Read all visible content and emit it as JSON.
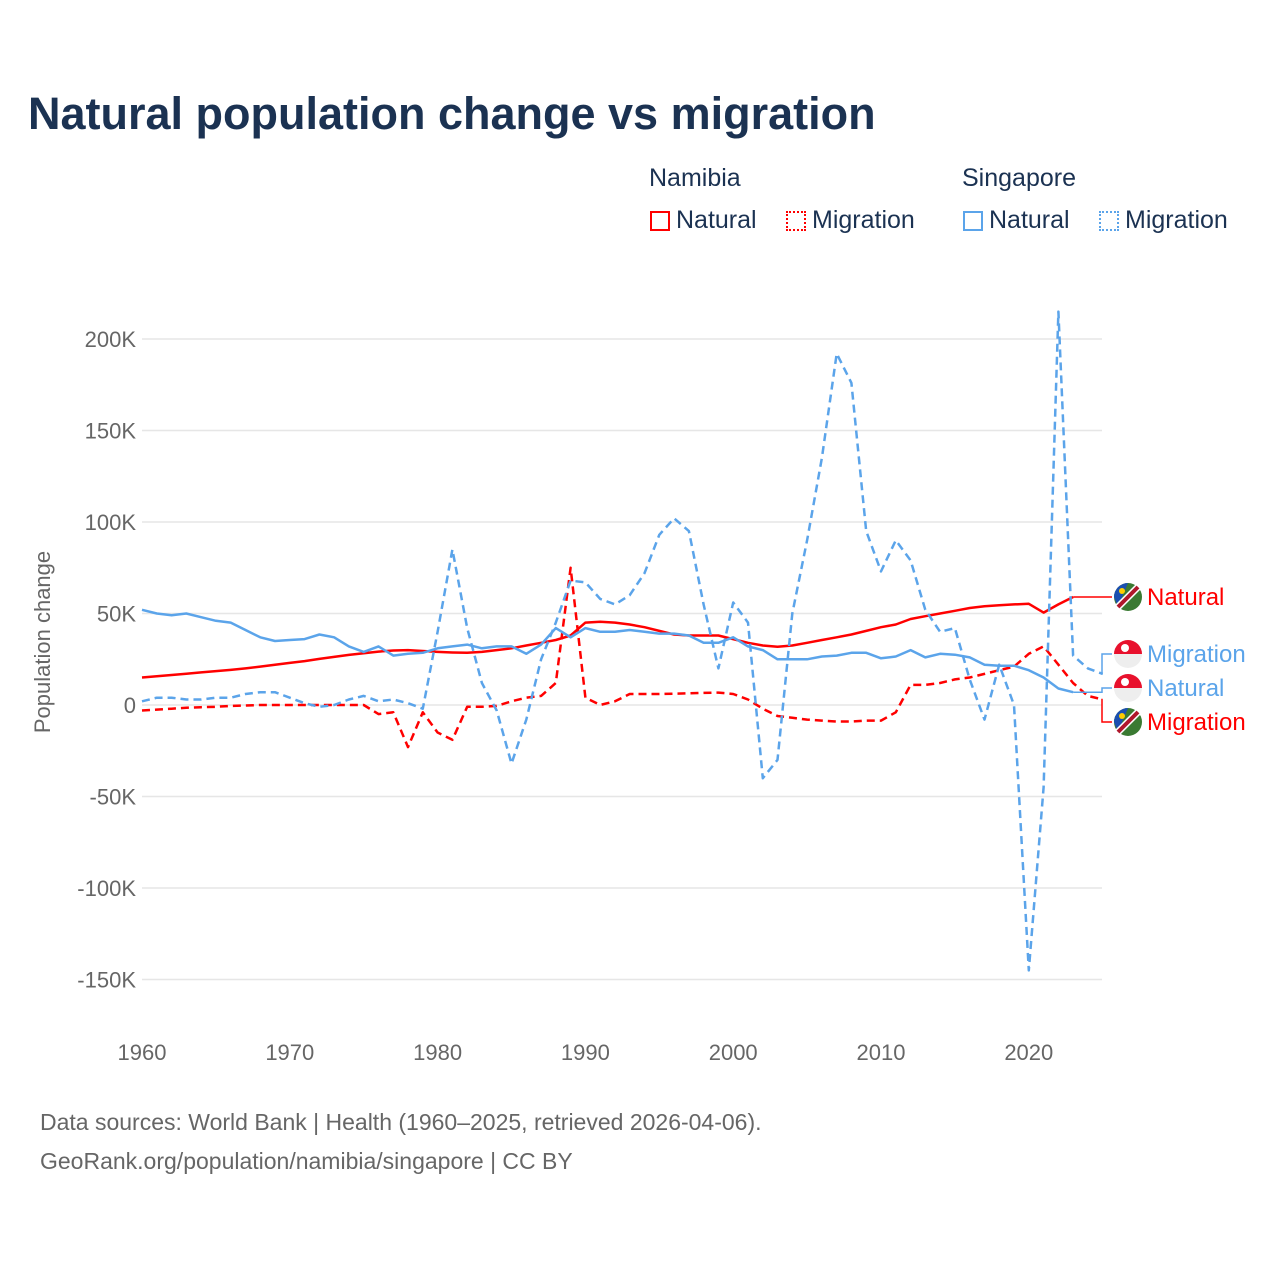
{
  "title": "Natural population change vs migration",
  "legend": {
    "groups": [
      {
        "name": "Namibia",
        "items": [
          "Natural",
          "Migration"
        ]
      },
      {
        "name": "Singapore",
        "items": [
          "Natural",
          "Migration"
        ]
      }
    ]
  },
  "colors": {
    "namibia": "#ff0000",
    "singapore": "#5ba4ea",
    "title": "#1b3252"
  },
  "source": [
    "Data sources: World Bank | Health (1960–2025, retrieved 2026-04-06).",
    "GeoRank.org/population/namibia/singapore | CC BY"
  ],
  "chart_data": {
    "type": "line",
    "title": "Natural population change vs migration",
    "ylabel": "Population change",
    "xlabel": "",
    "xlim": [
      1960,
      2025
    ],
    "ylim": [
      -165,
      215
    ],
    "unit": "thousands",
    "x_ticks": [
      "1960",
      "1970",
      "1980",
      "1990",
      "2000",
      "2010",
      "2020"
    ],
    "y_ticks": [
      {
        "v": 200,
        "l": "200K"
      },
      {
        "v": 150,
        "l": "150K"
      },
      {
        "v": 100,
        "l": "100K"
      },
      {
        "v": 50,
        "l": "50K"
      },
      {
        "v": 0,
        "l": "0"
      },
      {
        "v": -50,
        "l": "-50K"
      },
      {
        "v": -100,
        "l": "-100K"
      },
      {
        "v": -150,
        "l": "-150K"
      }
    ],
    "x_start": 1960,
    "series": [
      {
        "name": "Namibia Natural",
        "label": "Natural",
        "country": "namibia",
        "dashed": false,
        "values": [
          15,
          15.7,
          16.4,
          17.1,
          17.8,
          18.5,
          19.2,
          20,
          21,
          22,
          23,
          24,
          25.2,
          26.3,
          27.4,
          28.3,
          29.2,
          29.8,
          30,
          29.5,
          29,
          28.7,
          28.5,
          29,
          30,
          31,
          32.5,
          34,
          35.5,
          38,
          45,
          45.5,
          45,
          44,
          42.5,
          40.5,
          38.5,
          38,
          38,
          38,
          36,
          34,
          32.5,
          31.8,
          32.5,
          34,
          35.5,
          37,
          38.5,
          40.5,
          42.5,
          44,
          47,
          48.5,
          50,
          51.5,
          53,
          54,
          54.5,
          55,
          55.3,
          50.5,
          55,
          59
        ]
      },
      {
        "name": "Namibia Migration",
        "label": "Migration",
        "country": "namibia",
        "dashed": true,
        "values": [
          -3,
          -2.5,
          -2,
          -1.5,
          -1.2,
          -1,
          -0.5,
          -0.3,
          0,
          0,
          0,
          0,
          0,
          0,
          0,
          0,
          -5,
          -4,
          -23,
          -4,
          -15,
          -19,
          -1,
          -1,
          -0.5,
          2,
          4,
          5,
          12,
          75,
          4,
          0,
          2,
          6,
          6,
          6,
          6.2,
          6.4,
          6.6,
          6.8,
          6,
          3,
          -2,
          -6,
          -7,
          -8,
          -8.5,
          -9,
          -9,
          -8.5,
          -8.5,
          -4,
          11,
          11,
          12,
          14,
          15,
          17,
          19,
          21,
          28,
          32,
          22,
          12,
          5,
          3
        ]
      },
      {
        "name": "Singapore Natural",
        "label": "Natural",
        "country": "singapore",
        "dashed": false,
        "values": [
          52,
          50,
          49,
          50,
          48,
          46,
          45,
          41,
          37,
          35,
          35.5,
          36,
          38.5,
          37,
          32,
          29,
          32,
          27,
          28,
          28.5,
          31,
          32,
          33,
          31,
          32,
          32,
          28,
          33,
          42,
          37,
          42,
          40,
          40,
          41,
          40,
          39,
          39,
          38,
          34,
          34,
          37,
          32,
          30,
          25,
          25,
          25,
          26.5,
          27,
          28.5,
          28.5,
          25.5,
          26.5,
          30,
          26,
          28,
          27.5,
          26,
          22,
          21.5,
          21.5,
          19,
          15,
          9,
          7
        ]
      },
      {
        "name": "Singapore Migration",
        "label": "Migration",
        "country": "singapore",
        "dashed": true,
        "values": [
          2,
          4,
          4,
          3,
          3,
          4,
          4,
          6,
          7,
          7,
          4,
          1,
          -1,
          0,
          3,
          5,
          2,
          3,
          1,
          -2,
          40,
          85,
          42,
          12,
          -3,
          -32,
          -8,
          25,
          45,
          68,
          67,
          58,
          55,
          60,
          72,
          93,
          102,
          95,
          55,
          20,
          56,
          45,
          -40,
          -30,
          50,
          90,
          135,
          192,
          176,
          95,
          73,
          90,
          79,
          52,
          40,
          42,
          14,
          -8,
          22,
          0,
          -145,
          -45,
          215,
          27,
          20,
          17
        ]
      }
    ]
  }
}
